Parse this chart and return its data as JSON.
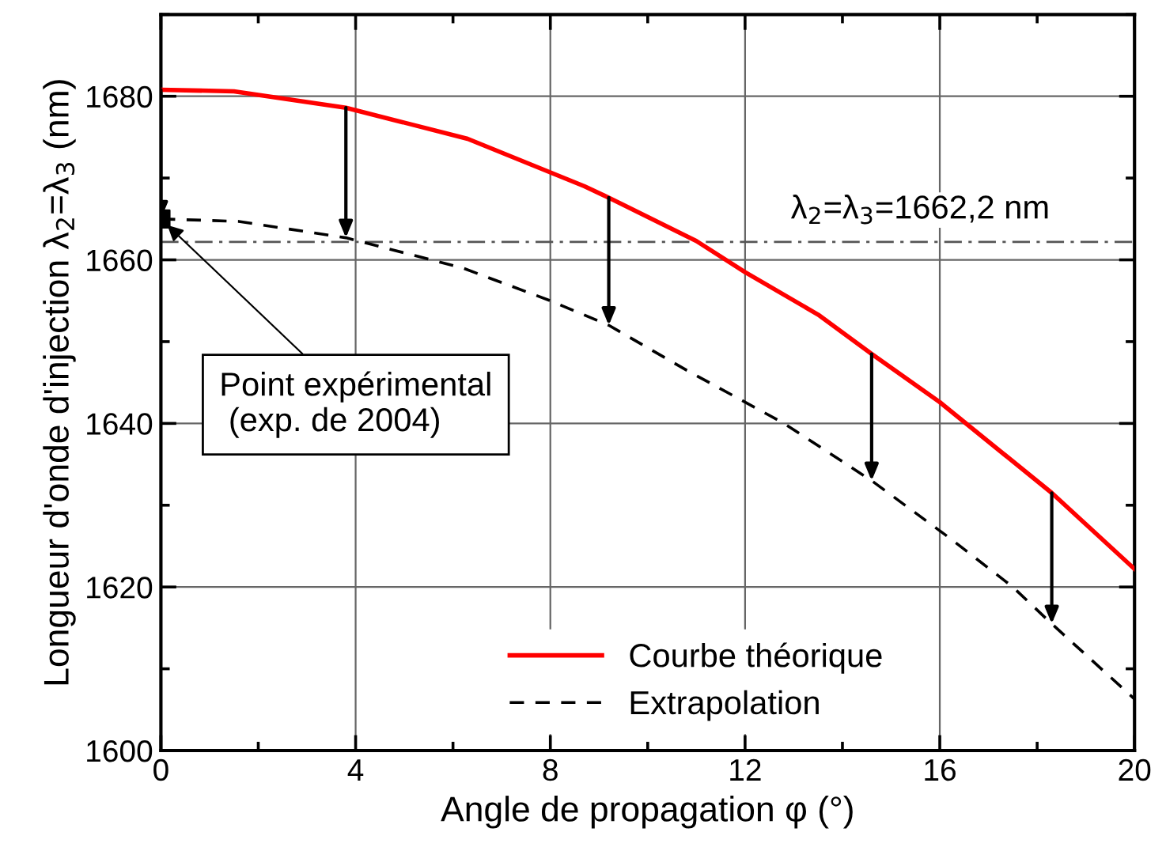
{
  "chart_data": {
    "type": "line",
    "xlabel": "Angle de propagation φ (°)",
    "ylabel": "Longueur d'onde d'injection λ$_{2}$=λ$_{3}$ (nm)",
    "xlim": [
      0,
      20
    ],
    "xticks": [
      0,
      4,
      8,
      12,
      16,
      20
    ],
    "ylim": [
      1600,
      1690
    ],
    "yticks": [
      1600,
      1620,
      1640,
      1660,
      1680
    ],
    "grid": true,
    "legend": "bottom",
    "series": [
      {
        "name": "Courbe théorique",
        "color": "#ff0000",
        "line_style": "solid",
        "x": [
          0,
          1.5,
          3.8,
          6.3,
          8.7,
          9.2,
          11,
          12,
          13.5,
          14.6,
          16,
          18.3,
          20
        ],
        "values": [
          1680.8,
          1680.6,
          1678.6,
          1674.8,
          1669,
          1667.6,
          1662.3,
          1658.5,
          1653.3,
          1648.5,
          1642.6,
          1631.5,
          1622.2
        ]
      },
      {
        "name": "Extrapolation",
        "color": "#000000",
        "line_style": "dashed",
        "x": [
          0,
          1.6,
          3.8,
          6.2,
          8,
          9.2,
          10.8,
          12.8,
          14.6,
          16.2,
          17.5,
          18.3,
          20
        ],
        "values": [
          1665,
          1664.7,
          1662.7,
          1659,
          1655,
          1652,
          1646.5,
          1640,
          1633,
          1626,
          1620,
          1615.5,
          1606.3
        ]
      },
      {
        "type": "scatter",
        "color": "#000000",
        "marker": "square",
        "x": [
          0
        ],
        "values": [
          1665
        ]
      }
    ],
    "ref_lines": [
      {
        "axis": "y",
        "value": 1662.2,
        "label": "λ$_{2}$=λ$_{3}$=1662,2 nm",
        "color": "#555555",
        "line_style": "dashdot"
      }
    ],
    "annotations": [
      {
        "text": "Point expérimental\n (exp. de 2004)",
        "x": 0,
        "y": 1665
      }
    ]
  }
}
